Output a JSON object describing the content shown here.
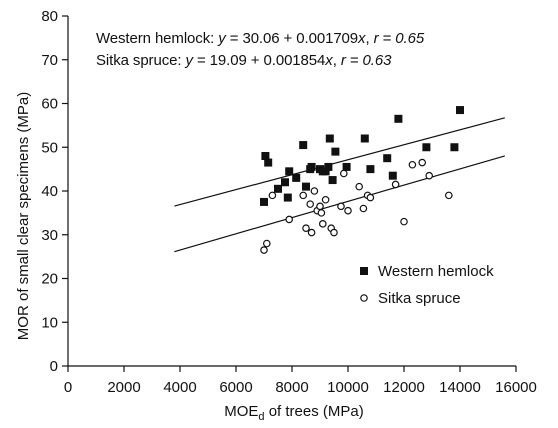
{
  "chart_data": {
    "type": "scatter",
    "xlabel_main": "MOE",
    "xlabel_sub": "d",
    "xlabel_rest": " of trees (MPa)",
    "ylabel": "MOR of small clear specimens (MPa)",
    "xlim": [
      0,
      16000
    ],
    "ylim": [
      0,
      80
    ],
    "xticks": [
      0,
      2000,
      4000,
      6000,
      8000,
      10000,
      12000,
      14000,
      16000
    ],
    "yticks": [
      0,
      10,
      20,
      30,
      40,
      50,
      60,
      70,
      80
    ],
    "grid": false,
    "legend_position": "lower-right",
    "series": [
      {
        "name": "Western hemlock",
        "marker": "filled-square",
        "color": "#111111",
        "points": [
          [
            7000,
            37.5
          ],
          [
            7050,
            48
          ],
          [
            7150,
            46.5
          ],
          [
            7500,
            40.5
          ],
          [
            7750,
            42
          ],
          [
            7850,
            38.5
          ],
          [
            7900,
            44.5
          ],
          [
            8150,
            43
          ],
          [
            8400,
            50.5
          ],
          [
            8500,
            41
          ],
          [
            8650,
            45
          ],
          [
            8700,
            45.5
          ],
          [
            9000,
            45
          ],
          [
            9100,
            44.5
          ],
          [
            9200,
            44.5
          ],
          [
            9300,
            45.5
          ],
          [
            9350,
            52
          ],
          [
            9450,
            42.5
          ],
          [
            9550,
            49
          ],
          [
            9950,
            45.5
          ],
          [
            10600,
            52
          ],
          [
            10800,
            45
          ],
          [
            11400,
            47.5
          ],
          [
            11600,
            43.5
          ],
          [
            11800,
            56.5
          ],
          [
            12800,
            50
          ],
          [
            13800,
            50
          ],
          [
            14000,
            58.5
          ]
        ],
        "regression": {
          "intercept": 30.06,
          "slope": 0.001709,
          "x_range": [
            3800,
            15600
          ]
        },
        "equation_label": "Western hemlock:",
        "equation_y": "y",
        "equation_rhs": " = 30.06 + 0.001709",
        "equation_x": "x",
        "equation_r": "r = 0.65"
      },
      {
        "name": "Sitka spruce",
        "marker": "open-circle",
        "color": "#111111",
        "points": [
          [
            7000,
            26.5
          ],
          [
            7100,
            28
          ],
          [
            7300,
            39
          ],
          [
            7900,
            33.5
          ],
          [
            8400,
            39
          ],
          [
            8500,
            31.5
          ],
          [
            8650,
            37
          ],
          [
            8700,
            30.5
          ],
          [
            8800,
            40
          ],
          [
            8900,
            35.5
          ],
          [
            9000,
            36.5
          ],
          [
            9050,
            35
          ],
          [
            9100,
            32.5
          ],
          [
            9200,
            38
          ],
          [
            9400,
            31.5
          ],
          [
            9500,
            30.5
          ],
          [
            9750,
            36.5
          ],
          [
            9850,
            44
          ],
          [
            10000,
            35.5
          ],
          [
            10400,
            41
          ],
          [
            10550,
            36
          ],
          [
            10700,
            39
          ],
          [
            10800,
            38.5
          ],
          [
            11700,
            41.5
          ],
          [
            12000,
            33
          ],
          [
            12300,
            46
          ],
          [
            12650,
            46.5
          ],
          [
            12900,
            43.5
          ],
          [
            13600,
            39
          ]
        ],
        "regression": {
          "intercept": 19.09,
          "slope": 0.001854,
          "x_range": [
            3800,
            15600
          ]
        },
        "equation_label": "Sitka spruce:",
        "equation_y": "y",
        "equation_rhs": " = 19.09 + 0.001854",
        "equation_x": "x",
        "equation_r": "r = 0.63"
      }
    ]
  }
}
